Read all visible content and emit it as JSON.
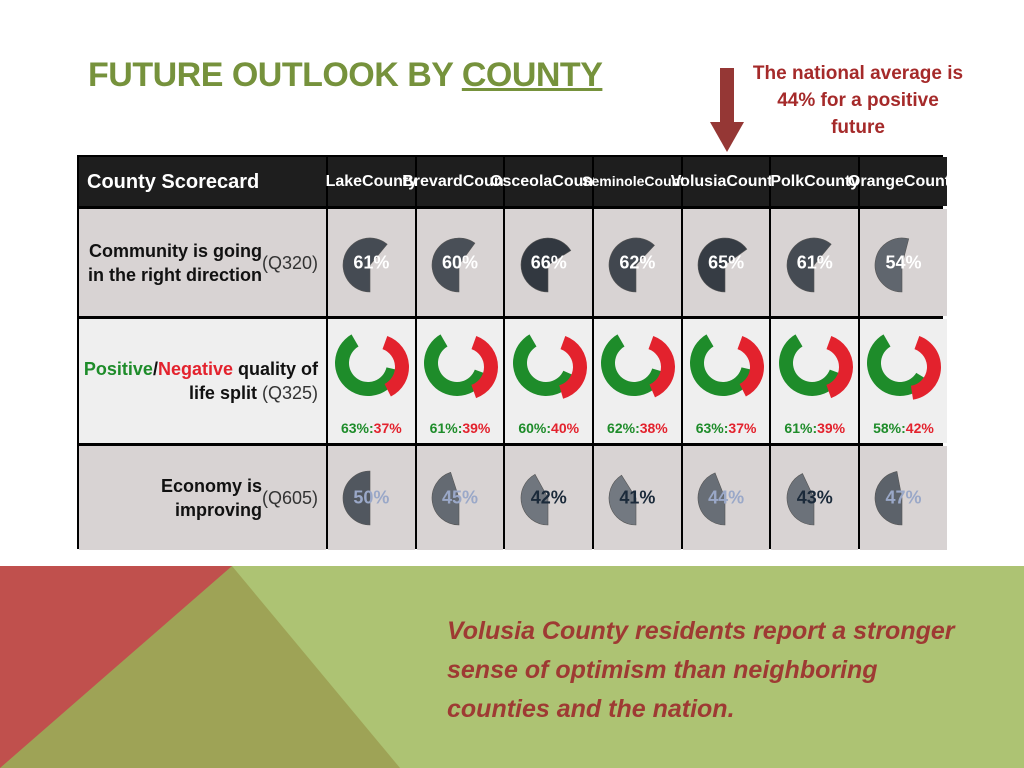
{
  "title": {
    "prefix": "FUTURE OUTLOOK BY ",
    "emphasis": "COUNTY"
  },
  "note": "The national average is 44% for a positive future",
  "scorecard": {
    "corner": "County Scorecard",
    "counties": [
      {
        "line1": "Lake",
        "line2": "County"
      },
      {
        "line1": "Brevard",
        "line2": "County"
      },
      {
        "line1": "Osceola",
        "line2": "County"
      },
      {
        "line1": "Seminole",
        "line2": "County"
      },
      {
        "line1": "Volusia",
        "line2": "County"
      },
      {
        "line1": "Polk",
        "line2": "County"
      },
      {
        "line1": "Orange",
        "line2": "County"
      }
    ],
    "rows": {
      "direction": {
        "label": "Community is going in the right direction",
        "code": "(Q320)",
        "values": [
          "61%",
          "60%",
          "66%",
          "62%",
          "65%",
          "61%",
          "54%"
        ],
        "levels": [
          61,
          60,
          66,
          62,
          65,
          61,
          54
        ]
      },
      "quality": {
        "label_positive": "Positive",
        "label_sep": "/",
        "label_negative": "Negative",
        "label_rest": " quality of life split",
        "code": "(Q325)",
        "positive": [
          "63%",
          "61%",
          "60%",
          "62%",
          "63%",
          "61%",
          "58%"
        ],
        "negative": [
          "37%",
          "39%",
          "40%",
          "38%",
          "37%",
          "39%",
          "42%"
        ],
        "positive_levels": [
          63,
          61,
          60,
          62,
          63,
          61,
          58
        ],
        "separator": ":"
      },
      "economy": {
        "label": "Economy is improving",
        "code": "(Q605)",
        "values": [
          "50%",
          "45%",
          "42%",
          "41%",
          "44%",
          "43%",
          "47%"
        ],
        "levels": [
          50,
          45,
          42,
          41,
          44,
          43,
          47
        ]
      }
    }
  },
  "quote": "Volusia County residents report a stronger sense of optimism than neighboring counties and the nation.",
  "colors": {
    "title_green": "#76923c",
    "note_red": "#a52a2a",
    "arrow": "#953735",
    "positive": "#1e8c2a",
    "negative": "#e3222d",
    "footer_red": "#c0504d",
    "footer_olive": "#9ea356",
    "footer_green": "#adc373"
  }
}
